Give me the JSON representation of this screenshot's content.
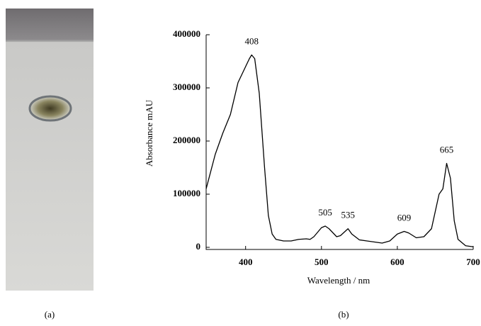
{
  "chart_data": {
    "type": "line",
    "panel_labels": [
      "(a)",
      "(b)"
    ],
    "xlabel": "Wavelength / nm",
    "ylabel": "Absorbance mAU",
    "x": [
      348,
      360,
      370,
      380,
      390,
      400,
      405,
      408,
      412,
      418,
      425,
      430,
      435,
      440,
      450,
      460,
      470,
      480,
      485,
      490,
      500,
      505,
      510,
      520,
      525,
      535,
      540,
      550,
      560,
      570,
      580,
      590,
      600,
      609,
      615,
      625,
      635,
      645,
      655,
      660,
      665,
      670,
      675,
      680,
      690,
      700
    ],
    "series": [
      {
        "color": "#000000",
        "values": [
          110000,
          175000,
          215000,
          250000,
          310000,
          340000,
          355000,
          362000,
          355000,
          290000,
          150000,
          60000,
          25000,
          15000,
          12000,
          12000,
          15000,
          16000,
          15000,
          20000,
          37000,
          40000,
          35000,
          20000,
          22000,
          35000,
          25000,
          14000,
          12000,
          10000,
          8000,
          12000,
          25000,
          30000,
          27000,
          18000,
          20000,
          35000,
          100000,
          110000,
          158000,
          130000,
          50000,
          15000,
          3000,
          1000
        ]
      }
    ],
    "annotations": [
      {
        "text": "408",
        "x": 408,
        "y": 362000
      },
      {
        "text": "505",
        "x": 505,
        "y": 40000
      },
      {
        "text": "535",
        "x": 535,
        "y": 35000
      },
      {
        "text": "609",
        "x": 609,
        "y": 30000
      },
      {
        "text": "665",
        "x": 665,
        "y": 158000
      }
    ],
    "xlim": [
      348,
      700
    ],
    "xticks": [
      400,
      500,
      600,
      700
    ],
    "ylim": [
      -4000,
      400000
    ],
    "yticks": [
      0,
      100000,
      200000,
      300000,
      400000
    ]
  }
}
